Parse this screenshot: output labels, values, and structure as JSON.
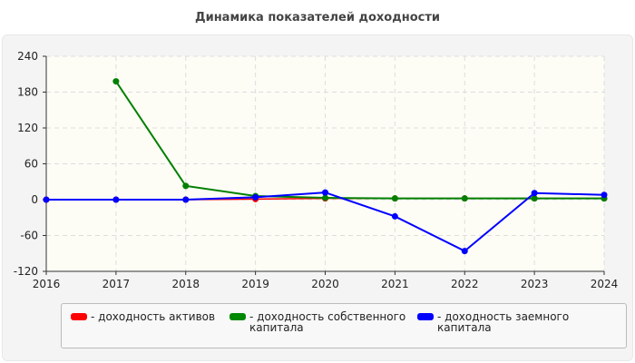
{
  "chart_data": {
    "type": "line",
    "title": "Динамика показателей доходности",
    "x": [
      "2016",
      "2017",
      "2018",
      "2019",
      "2020",
      "2021",
      "2022",
      "2023",
      "2024"
    ],
    "yticks": [
      240,
      180,
      120,
      60,
      0,
      -60,
      -120
    ],
    "ylim": [
      -120,
      240
    ],
    "grid": true,
    "legend_placement": "bottom",
    "series": [
      {
        "name": "- доходность активов",
        "color": "#ff0000",
        "values": [
          0,
          0,
          0,
          1,
          2,
          2,
          2,
          2,
          2
        ]
      },
      {
        "name": "- доходность собственного капитала",
        "color": "#008000",
        "values": [
          null,
          198,
          23,
          6,
          3,
          2,
          2,
          2,
          2
        ]
      },
      {
        "name": "- доходность заемного капитала",
        "color": "#0000ff",
        "values": [
          0,
          0,
          0,
          4,
          12,
          -28,
          -86,
          11,
          8
        ]
      }
    ]
  }
}
